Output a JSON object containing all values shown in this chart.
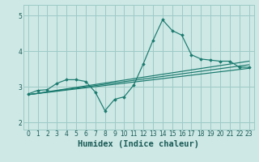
{
  "bg_color": "#cde8e5",
  "grid_color": "#9dcac6",
  "line_color": "#1a7a6e",
  "xlabel": "Humidex (Indice chaleur)",
  "xlabel_fontsize": 7.5,
  "xlim": [
    -0.5,
    23.5
  ],
  "ylim": [
    1.8,
    5.3
  ],
  "yticks": [
    2,
    3,
    4,
    5
  ],
  "xticks": [
    0,
    1,
    2,
    3,
    4,
    5,
    6,
    7,
    8,
    9,
    10,
    11,
    12,
    13,
    14,
    15,
    16,
    17,
    18,
    19,
    20,
    21,
    22,
    23
  ],
  "main_line": [
    [
      0,
      2.8
    ],
    [
      1,
      2.9
    ],
    [
      2,
      2.92
    ],
    [
      3,
      3.1
    ],
    [
      4,
      3.2
    ],
    [
      5,
      3.2
    ],
    [
      6,
      3.15
    ],
    [
      7,
      2.85
    ],
    [
      8,
      2.33
    ],
    [
      9,
      2.65
    ],
    [
      10,
      2.72
    ],
    [
      11,
      3.05
    ],
    [
      12,
      3.65
    ],
    [
      13,
      4.3
    ],
    [
      14,
      4.88
    ],
    [
      15,
      4.58
    ],
    [
      16,
      4.45
    ],
    [
      17,
      3.9
    ],
    [
      18,
      3.78
    ],
    [
      19,
      3.75
    ],
    [
      20,
      3.72
    ],
    [
      21,
      3.72
    ],
    [
      22,
      3.55
    ],
    [
      23,
      3.55
    ]
  ],
  "trend_line1": [
    [
      0,
      2.78
    ],
    [
      23,
      3.52
    ]
  ],
  "trend_line2": [
    [
      0,
      2.78
    ],
    [
      23,
      3.62
    ]
  ],
  "trend_line3": [
    [
      0,
      2.78
    ],
    [
      23,
      3.72
    ]
  ]
}
